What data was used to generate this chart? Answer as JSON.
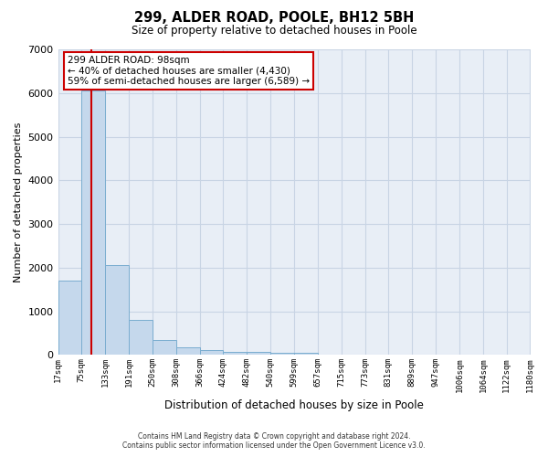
{
  "title": "299, ALDER ROAD, POOLE, BH12 5BH",
  "subtitle": "Size of property relative to detached houses in Poole",
  "xlabel": "Distribution of detached houses by size in Poole",
  "ylabel": "Number of detached properties",
  "property_size": 98,
  "annotation_line1": "299 ALDER ROAD: 98sqm",
  "annotation_line2": "← 40% of detached houses are smaller (4,430)",
  "annotation_line3": "59% of semi-detached houses are larger (6,589) →",
  "footer_line1": "Contains HM Land Registry data © Crown copyright and database right 2024.",
  "footer_line2": "Contains public sector information licensed under the Open Government Licence v3.0.",
  "bin_edges": [
    17,
    75,
    133,
    191,
    250,
    308,
    366,
    424,
    482,
    540,
    599,
    657,
    715,
    773,
    831,
    889,
    947,
    1006,
    1064,
    1122,
    1180
  ],
  "bar_heights": [
    1700,
    6050,
    2050,
    800,
    350,
    175,
    110,
    75,
    60,
    50,
    50,
    0,
    0,
    0,
    0,
    0,
    0,
    0,
    0,
    0
  ],
  "bar_color": "#c5d8ec",
  "bar_edge_color": "#7aadd0",
  "grid_color": "#c8d4e4",
  "background_color": "#e8eef6",
  "red_line_color": "#cc0000",
  "annotation_box_color": "#cc0000",
  "ylim": [
    0,
    7000
  ],
  "yticks": [
    0,
    1000,
    2000,
    3000,
    4000,
    5000,
    6000,
    7000
  ],
  "tick_labels": [
    "17sqm",
    "75sqm",
    "133sqm",
    "191sqm",
    "250sqm",
    "308sqm",
    "366sqm",
    "424sqm",
    "482sqm",
    "540sqm",
    "599sqm",
    "657sqm",
    "715sqm",
    "773sqm",
    "831sqm",
    "889sqm",
    "947sqm",
    "1006sqm",
    "1064sqm",
    "1122sqm",
    "1180sqm"
  ]
}
